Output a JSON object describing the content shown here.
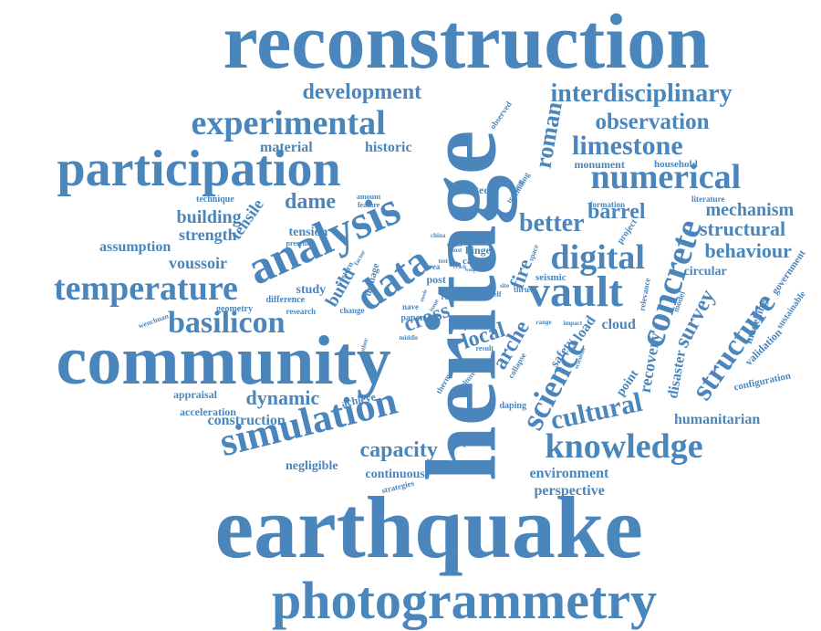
{
  "color": "#4a86bb",
  "words": [
    "reconstruction",
    "heritage",
    "earthquake",
    "community",
    "participation",
    "photogrammetry",
    "analysis",
    "data",
    "vault",
    "concrete",
    "simulation",
    "temperature",
    "experimental",
    "knowledge",
    "basilicon",
    "interdisciplinary",
    "numerical",
    "digital",
    "science",
    "structure",
    "cultural",
    "development",
    "observation",
    "limestone",
    "roman",
    "better",
    "building",
    "dame",
    "capacity",
    "dynamic",
    "structural",
    "mechanism",
    "behaviour",
    "barrel",
    "strength",
    "tensile",
    "voussoir",
    "assumption",
    "material",
    "historic",
    "environment",
    "perspective",
    "cross",
    "local",
    "arche",
    "survey",
    "recovery",
    "disaster",
    "construction",
    "humanitarian",
    "negligible",
    "continuous",
    "fire",
    "build",
    "study",
    "monument",
    "household",
    "appraisal",
    "acceleration",
    "achieve",
    "improve",
    "cloud",
    "point",
    "load",
    "safety",
    "circular",
    "government",
    "modelling",
    "sustainable",
    "validation",
    "configuration",
    "vaulted",
    "technique",
    "tension",
    "present",
    "geometry",
    "wenchuan",
    "difference",
    "research",
    "change",
    "seismic",
    "thrust",
    "limit",
    "post",
    "area",
    "nave",
    "paper",
    "middle",
    "role",
    "case",
    "hinge",
    "damage",
    "western",
    "factor",
    "formation",
    "literature",
    "amount",
    "feature",
    "observed",
    "training",
    "finding",
    "project",
    "relevance",
    "model",
    "scientist",
    "impact",
    "range",
    "collapse",
    "daping",
    "result",
    "thermal",
    "culture",
    "rural",
    "help",
    "self",
    "site",
    "strategies",
    "author",
    "space",
    "china",
    "test",
    "most",
    "effect",
    "crack",
    "wall",
    "peak",
    "prone",
    "issue",
    "mode"
  ]
}
